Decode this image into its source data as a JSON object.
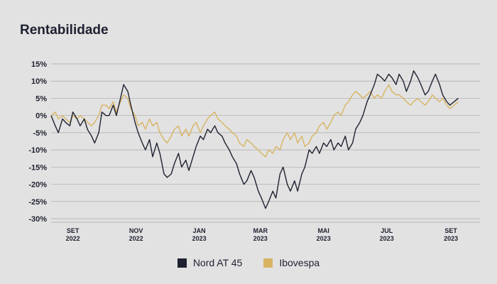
{
  "title": "Rentabilidade",
  "colors": {
    "background": "#e2e2e2",
    "grid": "#a9a9a9",
    "text": "#1e2130"
  },
  "chart_data": {
    "type": "line",
    "title": "Rentabilidade",
    "xlabel": "",
    "ylabel": "",
    "x_range": [
      "2022-08-11",
      "2023-09-29"
    ],
    "ylim": [
      -30,
      15
    ],
    "yticks": [
      15,
      10,
      5,
      0,
      -5,
      -10,
      -15,
      -20,
      -25,
      -30
    ],
    "ytick_labels": [
      "15%",
      "10%",
      "5%",
      "0%",
      "-5%",
      "-10%",
      "-15%",
      "-20%",
      "-25%",
      "-30%"
    ],
    "x_ticks": [
      {
        "date": "2022-09-01",
        "month": "SET",
        "year": "2022"
      },
      {
        "date": "2022-11-01",
        "month": "NOV",
        "year": "2022"
      },
      {
        "date": "2023-01-01",
        "month": "JAN",
        "year": "2023"
      },
      {
        "date": "2023-03-01",
        "month": "MAR",
        "year": "2023"
      },
      {
        "date": "2023-05-01",
        "month": "MAI",
        "year": "2023"
      },
      {
        "date": "2023-07-01",
        "month": "JUL",
        "year": "2023"
      },
      {
        "date": "2023-09-01",
        "month": "SET",
        "year": "2023"
      }
    ],
    "grid": true,
    "legend_position": "bottom-center",
    "series": [
      {
        "name": "Nord AT 45",
        "color": "#1e2130",
        "points": [
          [
            "2022-08-11",
            0
          ],
          [
            "2022-08-15",
            -3
          ],
          [
            "2022-08-18",
            -5
          ],
          [
            "2022-08-22",
            -1
          ],
          [
            "2022-08-25",
            -2
          ],
          [
            "2022-08-29",
            -3
          ],
          [
            "2022-09-01",
            1
          ],
          [
            "2022-09-05",
            -1
          ],
          [
            "2022-09-08",
            -3
          ],
          [
            "2022-09-12",
            -1
          ],
          [
            "2022-09-15",
            -4
          ],
          [
            "2022-09-19",
            -6
          ],
          [
            "2022-09-22",
            -8
          ],
          [
            "2022-09-26",
            -5
          ],
          [
            "2022-09-29",
            1
          ],
          [
            "2022-10-03",
            0
          ],
          [
            "2022-10-06",
            0
          ],
          [
            "2022-10-10",
            3
          ],
          [
            "2022-10-13",
            0
          ],
          [
            "2022-10-17",
            5
          ],
          [
            "2022-10-20",
            9
          ],
          [
            "2022-10-24",
            7
          ],
          [
            "2022-10-27",
            3
          ],
          [
            "2022-10-31",
            -2
          ],
          [
            "2022-11-03",
            -5
          ],
          [
            "2022-11-07",
            -8
          ],
          [
            "2022-11-10",
            -10
          ],
          [
            "2022-11-14",
            -7
          ],
          [
            "2022-11-17",
            -12
          ],
          [
            "2022-11-21",
            -8
          ],
          [
            "2022-11-24",
            -11
          ],
          [
            "2022-11-28",
            -17
          ],
          [
            "2022-12-01",
            -18
          ],
          [
            "2022-12-05",
            -17
          ],
          [
            "2022-12-08",
            -14
          ],
          [
            "2022-12-12",
            -11
          ],
          [
            "2022-12-15",
            -15
          ],
          [
            "2022-12-19",
            -13
          ],
          [
            "2022-12-22",
            -16
          ],
          [
            "2022-12-26",
            -12
          ],
          [
            "2022-12-29",
            -9
          ],
          [
            "2023-01-02",
            -6
          ],
          [
            "2023-01-05",
            -7
          ],
          [
            "2023-01-09",
            -4
          ],
          [
            "2023-01-12",
            -5
          ],
          [
            "2023-01-16",
            -3
          ],
          [
            "2023-01-19",
            -5
          ],
          [
            "2023-01-23",
            -6
          ],
          [
            "2023-01-26",
            -8
          ],
          [
            "2023-01-30",
            -10
          ],
          [
            "2023-02-02",
            -12
          ],
          [
            "2023-02-06",
            -14
          ],
          [
            "2023-02-09",
            -17
          ],
          [
            "2023-02-13",
            -20
          ],
          [
            "2023-02-16",
            -19
          ],
          [
            "2023-02-20",
            -16
          ],
          [
            "2023-02-23",
            -18
          ],
          [
            "2023-02-27",
            -22
          ],
          [
            "2023-03-02",
            -24
          ],
          [
            "2023-03-06",
            -27
          ],
          [
            "2023-03-09",
            -25
          ],
          [
            "2023-03-13",
            -22
          ],
          [
            "2023-03-16",
            -24
          ],
          [
            "2023-03-20",
            -17
          ],
          [
            "2023-03-23",
            -15
          ],
          [
            "2023-03-27",
            -20
          ],
          [
            "2023-03-30",
            -22
          ],
          [
            "2023-04-03",
            -19
          ],
          [
            "2023-04-06",
            -22
          ],
          [
            "2023-04-10",
            -17
          ],
          [
            "2023-04-13",
            -15
          ],
          [
            "2023-04-17",
            -10
          ],
          [
            "2023-04-20",
            -11
          ],
          [
            "2023-04-24",
            -9
          ],
          [
            "2023-04-27",
            -11
          ],
          [
            "2023-05-01",
            -8
          ],
          [
            "2023-05-04",
            -9
          ],
          [
            "2023-05-08",
            -7
          ],
          [
            "2023-05-11",
            -10
          ],
          [
            "2023-05-15",
            -8
          ],
          [
            "2023-05-18",
            -9
          ],
          [
            "2023-05-22",
            -6
          ],
          [
            "2023-05-25",
            -10
          ],
          [
            "2023-05-29",
            -8
          ],
          [
            "2023-06-01",
            -4
          ],
          [
            "2023-06-05",
            -2
          ],
          [
            "2023-06-08",
            0
          ],
          [
            "2023-06-12",
            4
          ],
          [
            "2023-06-15",
            6
          ],
          [
            "2023-06-19",
            9
          ],
          [
            "2023-06-22",
            12
          ],
          [
            "2023-06-26",
            11
          ],
          [
            "2023-06-29",
            10
          ],
          [
            "2023-07-03",
            12
          ],
          [
            "2023-07-06",
            11
          ],
          [
            "2023-07-10",
            9
          ],
          [
            "2023-07-13",
            12
          ],
          [
            "2023-07-17",
            10
          ],
          [
            "2023-07-20",
            7
          ],
          [
            "2023-07-24",
            10
          ],
          [
            "2023-07-27",
            13
          ],
          [
            "2023-07-31",
            11
          ],
          [
            "2023-08-03",
            9
          ],
          [
            "2023-08-07",
            6
          ],
          [
            "2023-08-10",
            7
          ],
          [
            "2023-08-14",
            10
          ],
          [
            "2023-08-17",
            12
          ],
          [
            "2023-08-21",
            9
          ],
          [
            "2023-08-24",
            6
          ],
          [
            "2023-08-28",
            4
          ],
          [
            "2023-08-31",
            3
          ],
          [
            "2023-09-04",
            4
          ],
          [
            "2023-09-08",
            5
          ]
        ]
      },
      {
        "name": "Ibovespa",
        "color": "#d8b462",
        "points": [
          [
            "2022-08-11",
            0
          ],
          [
            "2022-08-15",
            1
          ],
          [
            "2022-08-18",
            -1
          ],
          [
            "2022-08-22",
            0
          ],
          [
            "2022-08-25",
            -1
          ],
          [
            "2022-08-29",
            -2
          ],
          [
            "2022-09-01",
            0
          ],
          [
            "2022-09-05",
            -1
          ],
          [
            "2022-09-08",
            0
          ],
          [
            "2022-09-12",
            -1
          ],
          [
            "2022-09-15",
            -2
          ],
          [
            "2022-09-19",
            -3
          ],
          [
            "2022-09-22",
            -2
          ],
          [
            "2022-09-26",
            0
          ],
          [
            "2022-09-29",
            3
          ],
          [
            "2022-10-03",
            3
          ],
          [
            "2022-10-06",
            2
          ],
          [
            "2022-10-10",
            4
          ],
          [
            "2022-10-13",
            1
          ],
          [
            "2022-10-17",
            4
          ],
          [
            "2022-10-20",
            6
          ],
          [
            "2022-10-24",
            5
          ],
          [
            "2022-10-27",
            2
          ],
          [
            "2022-10-31",
            0
          ],
          [
            "2022-11-03",
            -3
          ],
          [
            "2022-11-07",
            -2
          ],
          [
            "2022-11-10",
            -4
          ],
          [
            "2022-11-14",
            -1
          ],
          [
            "2022-11-17",
            -3
          ],
          [
            "2022-11-21",
            -2
          ],
          [
            "2022-11-24",
            -5
          ],
          [
            "2022-11-28",
            -7
          ],
          [
            "2022-12-01",
            -8
          ],
          [
            "2022-12-05",
            -6
          ],
          [
            "2022-12-08",
            -4
          ],
          [
            "2022-12-12",
            -3
          ],
          [
            "2022-12-15",
            -6
          ],
          [
            "2022-12-19",
            -4
          ],
          [
            "2022-12-22",
            -6
          ],
          [
            "2022-12-26",
            -3
          ],
          [
            "2022-12-29",
            -2
          ],
          [
            "2023-01-02",
            -5
          ],
          [
            "2023-01-05",
            -3
          ],
          [
            "2023-01-09",
            -1
          ],
          [
            "2023-01-12",
            0
          ],
          [
            "2023-01-16",
            1
          ],
          [
            "2023-01-19",
            -1
          ],
          [
            "2023-01-23",
            -2
          ],
          [
            "2023-01-26",
            -3
          ],
          [
            "2023-01-30",
            -4
          ],
          [
            "2023-02-02",
            -5
          ],
          [
            "2023-02-06",
            -6
          ],
          [
            "2023-02-09",
            -8
          ],
          [
            "2023-02-13",
            -9
          ],
          [
            "2023-02-16",
            -7
          ],
          [
            "2023-02-20",
            -8
          ],
          [
            "2023-02-23",
            -9
          ],
          [
            "2023-02-27",
            -10
          ],
          [
            "2023-03-02",
            -11
          ],
          [
            "2023-03-06",
            -12
          ],
          [
            "2023-03-09",
            -10
          ],
          [
            "2023-03-13",
            -11
          ],
          [
            "2023-03-16",
            -9
          ],
          [
            "2023-03-20",
            -10
          ],
          [
            "2023-03-23",
            -7
          ],
          [
            "2023-03-27",
            -5
          ],
          [
            "2023-03-30",
            -7
          ],
          [
            "2023-04-03",
            -5
          ],
          [
            "2023-04-06",
            -8
          ],
          [
            "2023-04-10",
            -6
          ],
          [
            "2023-04-13",
            -9
          ],
          [
            "2023-04-17",
            -8
          ],
          [
            "2023-04-20",
            -6
          ],
          [
            "2023-04-24",
            -5
          ],
          [
            "2023-04-27",
            -3
          ],
          [
            "2023-05-01",
            -2
          ],
          [
            "2023-05-04",
            -4
          ],
          [
            "2023-05-08",
            -2
          ],
          [
            "2023-05-11",
            0
          ],
          [
            "2023-05-15",
            1
          ],
          [
            "2023-05-18",
            0
          ],
          [
            "2023-05-22",
            3
          ],
          [
            "2023-05-25",
            4
          ],
          [
            "2023-05-29",
            6
          ],
          [
            "2023-06-01",
            7
          ],
          [
            "2023-06-05",
            6
          ],
          [
            "2023-06-08",
            5
          ],
          [
            "2023-06-12",
            6
          ],
          [
            "2023-06-15",
            7
          ],
          [
            "2023-06-19",
            5
          ],
          [
            "2023-06-22",
            6
          ],
          [
            "2023-06-26",
            5
          ],
          [
            "2023-06-29",
            7
          ],
          [
            "2023-07-03",
            9
          ],
          [
            "2023-07-06",
            7
          ],
          [
            "2023-07-10",
            6
          ],
          [
            "2023-07-13",
            6
          ],
          [
            "2023-07-17",
            5
          ],
          [
            "2023-07-20",
            4
          ],
          [
            "2023-07-24",
            3
          ],
          [
            "2023-07-27",
            4
          ],
          [
            "2023-07-31",
            5
          ],
          [
            "2023-08-03",
            4
          ],
          [
            "2023-08-07",
            3
          ],
          [
            "2023-08-10",
            4
          ],
          [
            "2023-08-14",
            6
          ],
          [
            "2023-08-17",
            5
          ],
          [
            "2023-08-21",
            4
          ],
          [
            "2023-08-24",
            5
          ],
          [
            "2023-08-28",
            3
          ],
          [
            "2023-08-31",
            2
          ],
          [
            "2023-09-04",
            3
          ],
          [
            "2023-09-08",
            4
          ]
        ]
      }
    ]
  }
}
